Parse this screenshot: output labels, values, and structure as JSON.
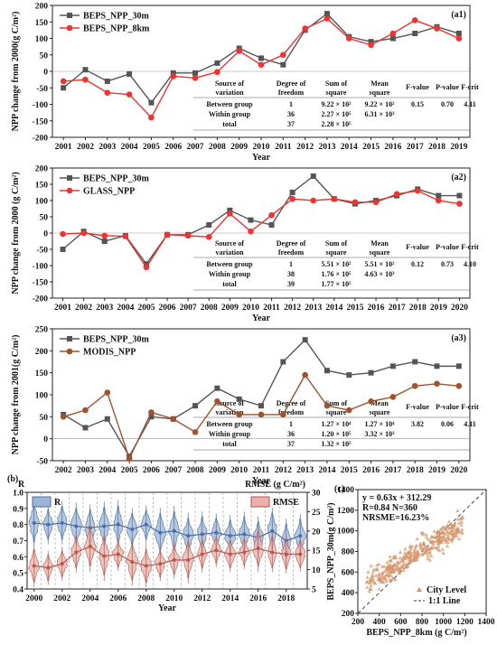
{
  "chart_data": [
    {
      "id": "a1",
      "type": "line",
      "panel_label": "(a1)",
      "ylabel": "NPP change from 2000(g C/m²)",
      "xlabel": "Year",
      "x": [
        2001,
        2002,
        2003,
        2004,
        2005,
        2006,
        2007,
        2008,
        2009,
        2010,
        2011,
        2012,
        2013,
        2014,
        2015,
        2016,
        2017,
        2018,
        2019
      ],
      "xticks": [
        "2001",
        "2002",
        "2003",
        "2004",
        "2005",
        "2006",
        "2007",
        "2008",
        "2009",
        "2010",
        "2011",
        "2012",
        "2013",
        "2014",
        "2015",
        "2016",
        "2017",
        "2018",
        "2019"
      ],
      "ylim": [
        -200,
        200
      ],
      "yticks": [
        "-200",
        "-150",
        "-100",
        "-50",
        "0",
        "50",
        "100",
        "150",
        "200"
      ],
      "legend_position": "top-left",
      "series": [
        {
          "name": "BEPS_NPP_30m",
          "color": "#555555",
          "marker": "square",
          "values": [
            -50,
            5,
            -30,
            -8,
            -95,
            -5,
            -5,
            25,
            70,
            40,
            20,
            125,
            175,
            105,
            90,
            100,
            115,
            135,
            115
          ]
        },
        {
          "name": "BEPS_NPP_8km",
          "color": "#ee3333",
          "marker": "circle",
          "values": [
            -30,
            -25,
            -65,
            -70,
            -140,
            -15,
            -20,
            -2,
            62,
            20,
            50,
            130,
            160,
            100,
            80,
            115,
            155,
            130,
            100
          ]
        }
      ],
      "table": {
        "header": [
          "Source of variation",
          "Degree of freedom",
          "Sum of square",
          "Mean square",
          "F-value",
          "P-value",
          "F-crit"
        ],
        "rows": [
          [
            "Between group",
            "1",
            "9.22 × 10²",
            "9.22 × 10²",
            "0.15",
            "0.70",
            "4.11"
          ],
          [
            "Within group",
            "36",
            "2.27 × 10⁵",
            "6.31 × 10³",
            "",
            "",
            ""
          ],
          [
            "total",
            "37",
            "2.28 × 10⁵",
            "",
            "",
            "",
            ""
          ]
        ]
      }
    },
    {
      "id": "a2",
      "type": "line",
      "panel_label": "(a2)",
      "ylabel": "NPP change from 2000 (g C/m²)",
      "xlabel": "Year",
      "x": [
        2001,
        2002,
        2003,
        2004,
        2005,
        2006,
        2007,
        2008,
        2009,
        2010,
        2011,
        2012,
        2013,
        2014,
        2015,
        2016,
        2017,
        2018,
        2019,
        2020
      ],
      "xticks": [
        "2001",
        "2002",
        "2003",
        "2004",
        "2005",
        "2006",
        "2007",
        "2008",
        "2009",
        "2010",
        "2011",
        "2012",
        "2013",
        "2014",
        "2015",
        "2016",
        "2017",
        "2018",
        "2019",
        "2020"
      ],
      "ylim": [
        -200,
        200
      ],
      "yticks": [
        "-200",
        "-150",
        "-100",
        "-50",
        "0",
        "50",
        "100",
        "150",
        "200"
      ],
      "legend_position": "top-left",
      "series": [
        {
          "name": "BEPS_NPP_30m",
          "color": "#555555",
          "marker": "square",
          "values": [
            -50,
            5,
            -25,
            -8,
            -95,
            -5,
            -5,
            25,
            70,
            40,
            25,
            125,
            175,
            105,
            90,
            100,
            115,
            135,
            115,
            115
          ]
        },
        {
          "name": "GLASS_NPP",
          "color": "#ee3333",
          "marker": "circle",
          "values": [
            -3,
            0,
            -8,
            -10,
            -105,
            -5,
            -8,
            -12,
            60,
            5,
            55,
            105,
            100,
            105,
            95,
            95,
            120,
            130,
            100,
            90
          ]
        }
      ],
      "table": {
        "header": [
          "Source of variation",
          "Degree of freedom",
          "Sum of square",
          "Mean square",
          "F-value",
          "P-value",
          "F-crit"
        ],
        "rows": [
          [
            "Between group",
            "1",
            "5.51 × 10²",
            "5.51 × 10²",
            "0.12",
            "0.73",
            "4.10"
          ],
          [
            "Within group",
            "38",
            "1.76 × 10⁵",
            "4.63 × 10³",
            "",
            "",
            ""
          ],
          [
            "total",
            "39",
            "1.77 × 10⁵",
            "",
            "",
            "",
            ""
          ]
        ]
      }
    },
    {
      "id": "a3",
      "type": "line",
      "panel_label": "(a3)",
      "ylabel": "NPP change from 2001(g C/m²)",
      "xlabel": "Year",
      "x": [
        2002,
        2003,
        2004,
        2005,
        2006,
        2007,
        2008,
        2009,
        2010,
        2011,
        2012,
        2013,
        2014,
        2015,
        2016,
        2017,
        2018,
        2019,
        2020
      ],
      "xticks": [
        "2002",
        "2003",
        "2004",
        "2005",
        "2006",
        "2007",
        "2008",
        "2009",
        "2010",
        "2011",
        "2012",
        "2013",
        "2014",
        "2015",
        "2016",
        "2017",
        "2018",
        "2019",
        "2020"
      ],
      "ylim": [
        -50,
        250
      ],
      "yticks": [
        "-50",
        "0",
        "50",
        "100",
        "150",
        "200",
        "250"
      ],
      "legend_position": "top-left",
      "series": [
        {
          "name": "BEPS_NPP_30m",
          "color": "#555555",
          "marker": "square",
          "values": [
            55,
            25,
            45,
            -40,
            50,
            45,
            75,
            115,
            90,
            75,
            175,
            225,
            155,
            145,
            150,
            165,
            175,
            165,
            165
          ]
        },
        {
          "name": "MODIS_NPP",
          "color": "#a0522d",
          "marker": "circle",
          "values": [
            50,
            65,
            105,
            -45,
            60,
            45,
            15,
            85,
            55,
            55,
            55,
            145,
            75,
            65,
            85,
            95,
            120,
            125,
            120
          ]
        }
      ],
      "table": {
        "header": [
          "Source of variation",
          "Degree of freedom",
          "Sum of square",
          "Mean square",
          "F-value",
          "P-value",
          "F-crit"
        ],
        "rows": [
          [
            "Between group",
            "1",
            "1.27 × 10⁴",
            "1.27 × 10⁴",
            "3.82",
            "0.06",
            "4.11"
          ],
          [
            "Within group",
            "36",
            "1.20 × 10⁵",
            "3.32 × 10³",
            "",
            "",
            ""
          ],
          [
            "total",
            "37",
            "1.32 × 10⁵",
            "",
            "",
            "",
            ""
          ]
        ]
      }
    },
    {
      "id": "b",
      "type": "violin",
      "panel_label": "(b)",
      "xlabel": "Year",
      "ylabel_left": "R",
      "ylabel_right": "RMSE (g C/m²)",
      "x": [
        2000,
        2001,
        2002,
        2003,
        2004,
        2005,
        2006,
        2007,
        2008,
        2009,
        2010,
        2011,
        2012,
        2013,
        2014,
        2015,
        2016,
        2017,
        2018,
        2019
      ],
      "xticks": [
        "2000",
        "2002",
        "2004",
        "2006",
        "2008",
        "2010",
        "2012",
        "2014",
        "2016",
        "2018"
      ],
      "ylim_left": [
        0.4,
        1.0
      ],
      "yticks_left": [
        "0.4",
        "0.5",
        "0.6",
        "0.7",
        "0.8",
        "0.9",
        "1.0"
      ],
      "ylim_right": [
        5,
        30
      ],
      "yticks_right": [
        "5",
        "10",
        "15",
        "20",
        "25",
        "30"
      ],
      "legend": [
        "R",
        "RMSE"
      ],
      "series": [
        {
          "name": "R",
          "color": "#4a6fa5",
          "fill": "#9db4d6",
          "values": [
            0.81,
            0.8,
            0.81,
            0.79,
            0.78,
            0.79,
            0.8,
            0.77,
            0.8,
            0.75,
            0.76,
            0.73,
            0.74,
            0.75,
            0.73,
            0.74,
            0.72,
            0.76,
            0.7,
            0.73
          ]
        },
        {
          "name": "RMSE",
          "color": "#b5584f",
          "fill": "#e8b0aa",
          "values": [
            11,
            10.5,
            11.5,
            14.5,
            16,
            13.5,
            14,
            12,
            11,
            11.5,
            12.5,
            12.5,
            14,
            15,
            14,
            14.5,
            15.5,
            14.5,
            14,
            14
          ]
        }
      ]
    },
    {
      "id": "c",
      "type": "scatter",
      "panel_label": "(c)",
      "xlabel": "BEPS_NPP_8km (g C/m²)",
      "ylabel": "BEPS_NPP_30m(g C/m²)",
      "xlim": [
        200,
        1400
      ],
      "ylim": [
        200,
        1400
      ],
      "xticks": [
        "200",
        "400",
        "600",
        "800",
        "1000",
        "1200",
        "1400"
      ],
      "yticks": [
        "200",
        "400",
        "600",
        "800",
        "1000",
        "1200",
        "1400"
      ],
      "annotations": [
        "y = 0.63x + 312.29",
        "R=0.84  N=360",
        "NRSME=16.23%"
      ],
      "legend": [
        "City Level",
        "1:1 Line"
      ],
      "color": "#d4956a",
      "regression": {
        "slope": 0.63,
        "intercept": 312.29
      }
    }
  ]
}
